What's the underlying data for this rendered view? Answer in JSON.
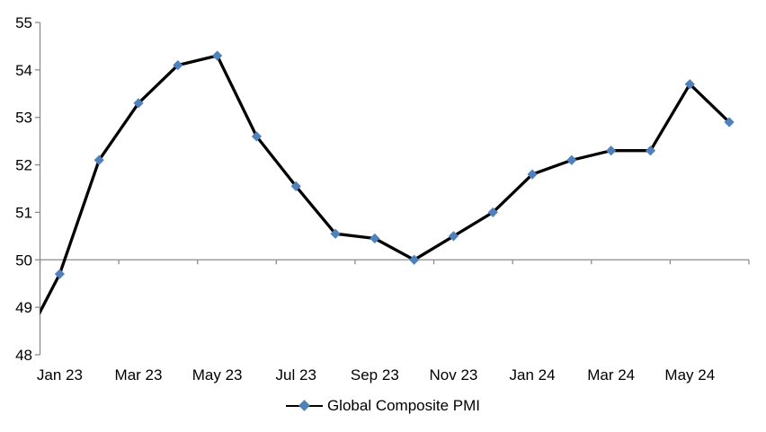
{
  "chart_data": {
    "type": "line",
    "title": "",
    "x_tick_labels": [
      "Jan 23",
      "Mar 23",
      "May 23",
      "Jul 23",
      "Sep 23",
      "Nov 23",
      "Jan 24",
      "Mar 24",
      "May 24"
    ],
    "y_axis": {
      "min": 48,
      "max": 55,
      "step": 1,
      "crosses_at": 50,
      "tick_labels": [
        55,
        54,
        53,
        52,
        51,
        50,
        49,
        48
      ]
    },
    "layout_hints": {
      "gridlines": "none except category axis line drawn at value 50 with tick marks below it",
      "plot_border": "left value axis only; no top, right or bottom border",
      "legend_position": "bottom-center"
    },
    "legend": {
      "label": "Global Composite PMI",
      "marker": "line-with-diamond"
    },
    "series": [
      {
        "name": "Global Composite PMI",
        "line_color": "#000000",
        "marker_shape": "diamond",
        "marker_color": "#4f81bd",
        "points": [
          {
            "label": "Dec 22",
            "value": 48.1,
            "clipped_outside_plot": true
          },
          {
            "label": "Jan 23",
            "value": 49.7
          },
          {
            "label": "Feb 23",
            "value": 52.1
          },
          {
            "label": "Mar 23",
            "value": 53.3
          },
          {
            "label": "Apr 23",
            "value": 54.1
          },
          {
            "label": "May 23",
            "value": 54.3
          },
          {
            "label": "Jun 23",
            "value": 52.6
          },
          {
            "label": "Jul 23",
            "value": 51.55
          },
          {
            "label": "Aug 23",
            "value": 50.55
          },
          {
            "label": "Sep 23",
            "value": 50.45
          },
          {
            "label": "Oct 23",
            "value": 50.0
          },
          {
            "label": "Nov 23",
            "value": 50.5
          },
          {
            "label": "Dec 23",
            "value": 51.0
          },
          {
            "label": "Jan 24",
            "value": 51.8
          },
          {
            "label": "Feb 24",
            "value": 52.1
          },
          {
            "label": "Mar 24",
            "value": 52.3
          },
          {
            "label": "Apr 24",
            "value": 52.3
          },
          {
            "label": "May 24",
            "value": 53.7
          },
          {
            "label": "Jun 24",
            "value": 52.9
          }
        ]
      }
    ],
    "colors": {
      "axis": "#8c8c8c",
      "text": "#000000",
      "background": "#ffffff"
    }
  }
}
